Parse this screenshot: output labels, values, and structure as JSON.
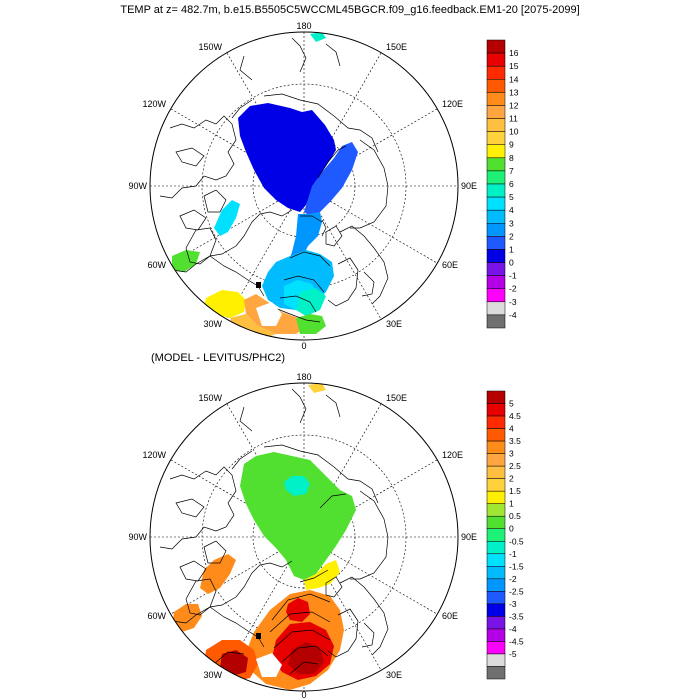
{
  "title": "TEMP at z= 482.7m, b.e15.B5505C5WCCML45BGCR.f09_g16.feedback.EM1-20 [2075-2099]",
  "subtitle": "(MODEL - LEVITUS/PHC2)",
  "map_labels": {
    "top": "180",
    "bottom": "0",
    "left": "90W",
    "right": "90E",
    "w150": "150W",
    "w120": "120W",
    "w60": "60W",
    "w30": "30W",
    "e150": "150E",
    "e120": "120E",
    "e60": "60E",
    "e30": "30E"
  },
  "panel1": {
    "variable": "TEMP",
    "depth": "482.7m",
    "legend": {
      "labels": [
        "16",
        "15",
        "14",
        "13",
        "12",
        "11",
        "10",
        "9",
        "8",
        "7",
        "6",
        "5",
        "4",
        "3",
        "2",
        "1",
        "0",
        "-1",
        "-2",
        "-3",
        "-4"
      ],
      "colors": [
        "#b40000",
        "#e60000",
        "#ff2a00",
        "#ff5a00",
        "#ff8c1a",
        "#ffa640",
        "#ffbf40",
        "#ffd23c",
        "#fff000",
        "#52e030",
        "#1ef078",
        "#00f0c8",
        "#00e0ff",
        "#00bcff",
        "#0096ff",
        "#1e5aff",
        "#0000e6",
        "#7814e6",
        "#b400e6",
        "#ff00ff",
        "#dcdcdc",
        "#707070"
      ]
    }
  },
  "panel2": {
    "variable": "TEMP difference",
    "legend": {
      "labels": [
        "5",
        "4.5",
        "4",
        "3.5",
        "3",
        "2.5",
        "2",
        "1.5",
        "1",
        "0.5",
        "0",
        "-0.5",
        "-1",
        "-1.5",
        "-2",
        "-2.5",
        "-3",
        "-3.5",
        "-4",
        "-4.5",
        "-5"
      ],
      "colors": [
        "#b40000",
        "#e60000",
        "#ff2a00",
        "#ff5a00",
        "#ff8c1a",
        "#ffa640",
        "#ffbf40",
        "#ffd23c",
        "#fff000",
        "#a0e632",
        "#52e030",
        "#1ef078",
        "#00f0c8",
        "#00e0ff",
        "#00bcff",
        "#0096ff",
        "#1e5aff",
        "#0000e6",
        "#7814e6",
        "#b400e6",
        "#ff00ff",
        "#dcdcdc",
        "#707070"
      ]
    }
  }
}
